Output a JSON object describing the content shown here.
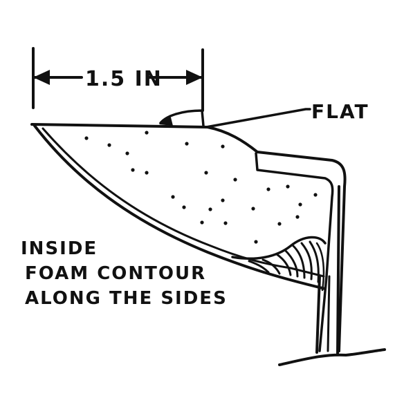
{
  "diagram": {
    "dimension_label": "1.5 IN",
    "callout_label": "FLAT",
    "note_lines": [
      "INSIDE",
      "FOAM CONTOUR",
      "ALONG THE SIDES"
    ]
  }
}
